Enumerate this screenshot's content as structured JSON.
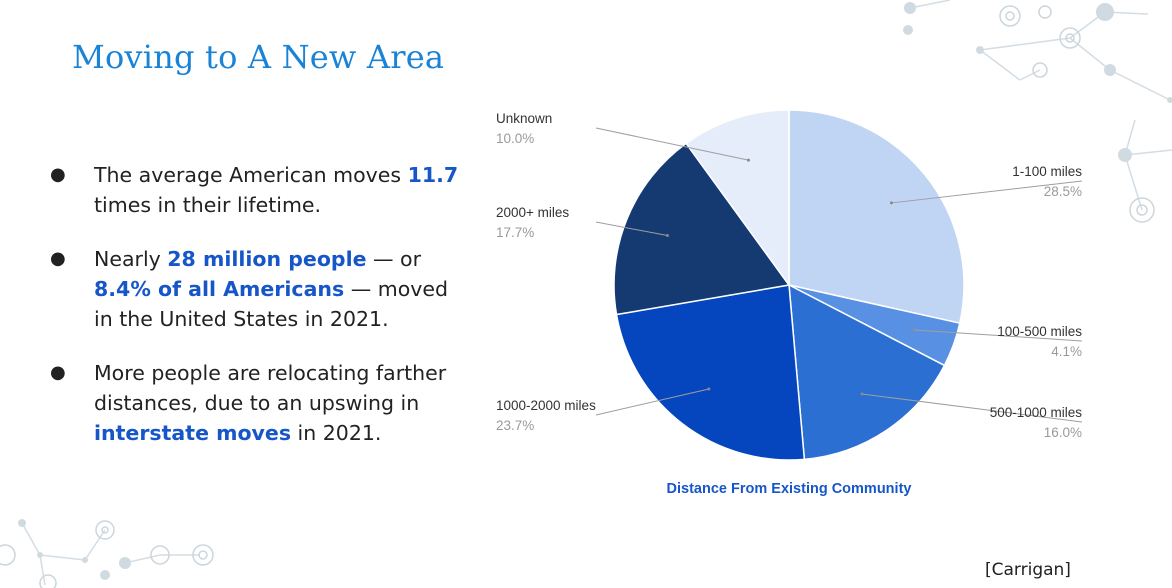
{
  "slide": {
    "title": "Moving to A New Area",
    "source": "[Carrigan]"
  },
  "bullets": [
    {
      "pre": "The average American moves ",
      "hl1": "11.7",
      "mid": " times in their lifetime.",
      "hl2": "",
      "post": ""
    },
    {
      "pre": "Nearly ",
      "hl1": "28 million people",
      "mid": " — or ",
      "hl2": "8.4% of all Americans",
      "post": " — moved in the United States in 2021."
    },
    {
      "pre": "More people are relocating farther distances, due to an upswing in ",
      "hl1": "interstate moves",
      "mid": " in 2021.",
      "hl2": "",
      "post": ""
    }
  ],
  "chart_data": {
    "type": "pie",
    "title": "Distance From Existing Community",
    "slices": [
      {
        "label": "1-100 miles",
        "pct_label": "28.5%",
        "value": 28.5,
        "color": "#c0d5f4"
      },
      {
        "label": "100-500 miles",
        "pct_label": "4.1%",
        "value": 4.1,
        "color": "#5891e4"
      },
      {
        "label": "500-1000 miles",
        "pct_label": "16.0%",
        "value": 16.0,
        "color": "#2c6fd3"
      },
      {
        "label": "1000-2000 miles",
        "pct_label": "23.7%",
        "value": 23.7,
        "color": "#0546be"
      },
      {
        "label": "2000+ miles",
        "pct_label": "17.7%",
        "value": 17.7,
        "color": "#153a72"
      },
      {
        "label": "Unknown",
        "pct_label": "10.0%",
        "value": 10.0,
        "color": "#e5edfa"
      }
    ],
    "legend": "none",
    "label_style": "callout"
  }
}
